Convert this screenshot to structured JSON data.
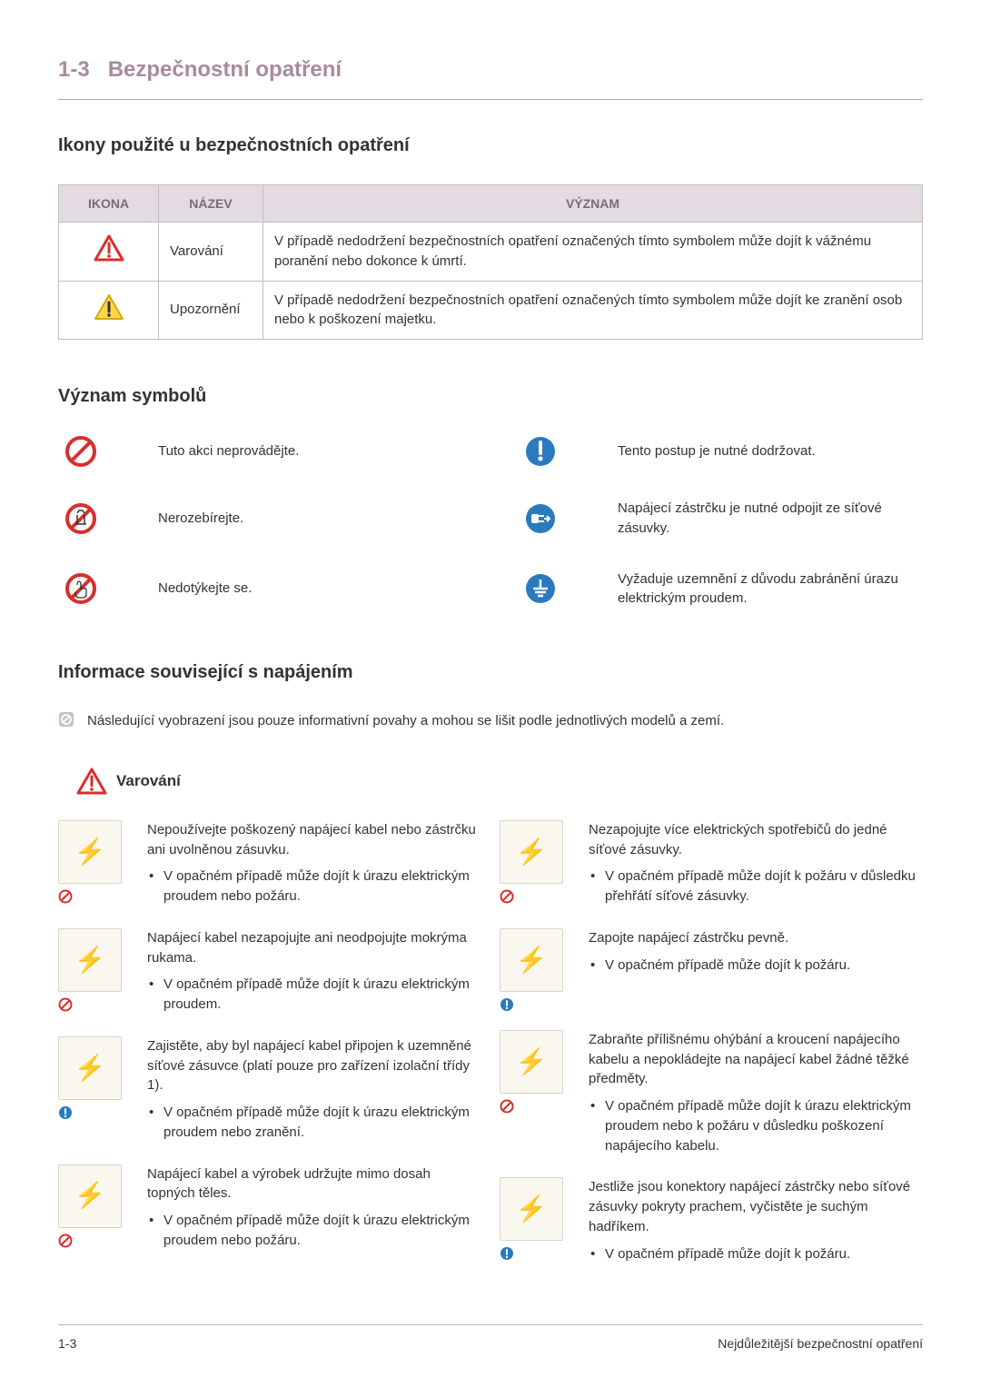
{
  "colors": {
    "heading": "#a88aa0",
    "table_header_bg": "#e4dbe2",
    "table_header_text": "#7c6b7a",
    "border": "#bfbfbf",
    "illus_bg": "#faf7ef",
    "prohibit_red": "#d92e2e",
    "mandatory_blue": "#2b7abf",
    "warn_border": "#d92e2e",
    "warn_exclaim": "#d92e2e",
    "warn_fill_yellow": "#ffd94a"
  },
  "heading": {
    "num": "1-3",
    "title": "Bezpečnostní opatření"
  },
  "icon_table": {
    "title": "Ikony použité u bezpečnostních opatření",
    "headers": {
      "icon": "IKONA",
      "name": "NÁZEV",
      "meaning": "VÝZNAM"
    },
    "rows": [
      {
        "icon": "warning",
        "name": "Varování",
        "meaning": "V případě nedodržení bezpečnostních opatření označených tímto symbolem může dojít k vážnému poranění nebo dokonce k úmrtí."
      },
      {
        "icon": "caution",
        "name": "Upozornění",
        "meaning": "V případě nedodržení bezpečnostních opatření označených tímto symbolem může dojít ke zranění osob nebo k poškození majetku."
      }
    ]
  },
  "symbols": {
    "title": "Význam symbolů",
    "items": [
      {
        "icon": "prohibit",
        "label": "Tuto akci neprovádějte."
      },
      {
        "icon": "mandatory-exclaim",
        "label": "Tento postup je nutné dodržovat."
      },
      {
        "icon": "no-disassemble",
        "label": "Nerozebírejte."
      },
      {
        "icon": "unplug",
        "label": "Napájecí zástrčku je nutné odpojit ze síťové zásuvky."
      },
      {
        "icon": "no-touch",
        "label": "Nedotýkejte se."
      },
      {
        "icon": "ground",
        "label": "Vyžaduje uzemnění z důvodu zabránění úrazu elektrickým proudem."
      }
    ]
  },
  "power_section": {
    "title": "Informace související s napájením",
    "note": "Následující vyobrazení jsou pouze informativní povahy a mohou se lišit podle jednotlivých modelů a zemí.",
    "warning_label": "Varování"
  },
  "warnings_left": [
    {
      "badge": "prohibit",
      "main": "Nepoužívejte poškozený napájecí kabel nebo zástrčku ani uvolněnou zásuvku.",
      "bullets": [
        "V opačném případě může dojít k úrazu elektrickým proudem nebo požáru."
      ]
    },
    {
      "badge": "prohibit",
      "main": "Napájecí kabel nezapojujte ani neodpojujte mokrýma rukama.",
      "bullets": [
        "V opačném případě může dojít k úrazu elektrickým proudem."
      ]
    },
    {
      "badge": "mandatory",
      "main": "Zajistěte, aby byl napájecí kabel připojen k uzemněné síťové zásuvce (platí pouze pro zařízení izolační třídy 1).",
      "bullets": [
        "V opačném případě může dojít k úrazu elektrickým proudem nebo zranění."
      ]
    },
    {
      "badge": "prohibit",
      "main": "Napájecí kabel a výrobek udržujte mimo dosah topných těles.",
      "bullets": [
        "V opačném případě může dojít k úrazu elektrickým proudem nebo požáru."
      ]
    }
  ],
  "warnings_right": [
    {
      "badge": "prohibit",
      "main": "Nezapojujte více elektrických spotřebičů do jedné síťové zásuvky.",
      "bullets": [
        "V opačném případě může dojít k požáru v důsledku přehřátí síťové zásuvky."
      ]
    },
    {
      "badge": "mandatory",
      "main": "Zapojte napájecí zástrčku pevně.",
      "bullets": [
        "V opačném případě může dojít k požáru."
      ]
    },
    {
      "badge": "prohibit",
      "main": "Zabraňte přílišnému ohýbání a kroucení napájecího kabelu a nepokládejte na napájecí kabel žádné těžké předměty.",
      "bullets": [
        "V opačném případě může dojít k úrazu elektrickým proudem nebo k požáru v důsledku poškození napájecího kabelu."
      ]
    },
    {
      "badge": "mandatory",
      "main": "Jestliže jsou konektory napájecí zástrčky nebo síťové zásuvky pokryty prachem, vyčistěte je suchým hadříkem.",
      "bullets": [
        "V opačném případě může dojít k požáru."
      ]
    }
  ],
  "footer": {
    "left": "1-3",
    "right": "Nejdůležitější bezpečnostní opatření"
  }
}
